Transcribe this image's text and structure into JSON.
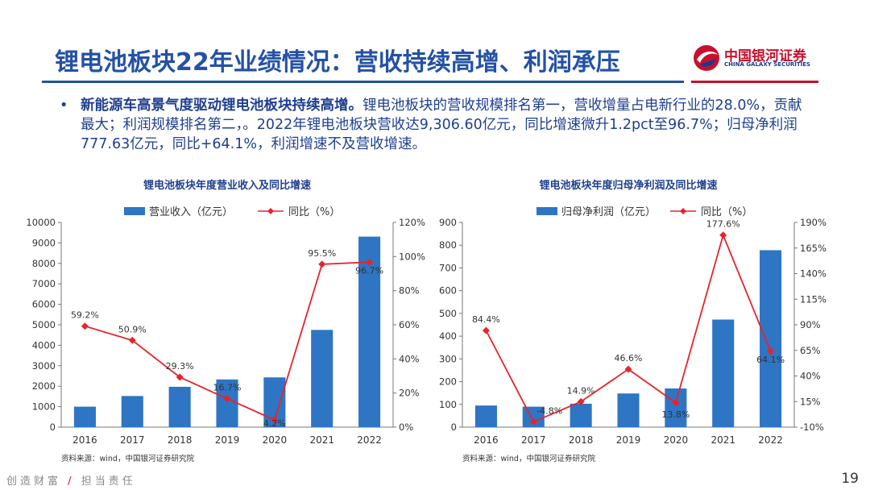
{
  "header": {
    "title": "锂电池板块22年业绩情况：营收持续高增、利润承压",
    "logo_cn": "中国银河证券",
    "logo_en": "CHINA GALAXY SECURITIES"
  },
  "bullet": {
    "marker": "•",
    "bold": "新能源车高景气度驱动锂电池板块持续高增。",
    "text": "锂电池板块的营收规模排名第一，营收增量占电新行业的28.0%，贡献最大；利润规模排名第二，。2022年锂电池板块营收达9,306.60亿元，同比增速微升1.2pct至96.7%；归母净利润777.63亿元，同比+64.1%，利润增速不及营收增速。"
  },
  "footer": {
    "left1": "创造财富",
    "slash": "/",
    "left2": "担当责任",
    "page": "19"
  },
  "colors": {
    "bar": "#2e75c4",
    "line": "#e8232a",
    "title": "#2451a6",
    "brand_red": "#c8102e"
  },
  "chart_data": [
    {
      "type": "bar",
      "title": "锂电池板块年度营业收入及同比增速",
      "categories": [
        "2016",
        "2017",
        "2018",
        "2019",
        "2020",
        "2021",
        "2022"
      ],
      "series": [
        {
          "name": "营业收入（亿元）",
          "axis": "left",
          "kind": "bar",
          "values": [
            1000,
            1520,
            1970,
            2330,
            2430,
            4750,
            9307
          ]
        },
        {
          "name": "同比（%）",
          "axis": "right",
          "kind": "line",
          "values": [
            59.2,
            50.9,
            29.3,
            16.7,
            4.2,
            95.5,
            96.7
          ],
          "labels": [
            "59.2%",
            "50.9%",
            "29.3%",
            "16.7%",
            "4.2%",
            "95.5%",
            "96.7%"
          ]
        }
      ],
      "ylim": [
        0,
        10000
      ],
      "yticks": [
        0,
        1000,
        2000,
        3000,
        4000,
        5000,
        6000,
        7000,
        8000,
        9000,
        10000
      ],
      "y2lim": [
        0,
        120
      ],
      "y2ticks": [
        0,
        20,
        40,
        60,
        80,
        100,
        120
      ],
      "y2ticklabels": [
        "0%",
        "20%",
        "40%",
        "60%",
        "80%",
        "100%",
        "120%"
      ],
      "legend": "top",
      "source": "资料来源：wind，中国银河证券研究院"
    },
    {
      "type": "bar",
      "title": "锂电池板块年度归母净利润及同比增速",
      "categories": [
        "2016",
        "2017",
        "2018",
        "2019",
        "2020",
        "2021",
        "2022"
      ],
      "series": [
        {
          "name": "归母净利润（亿元）",
          "axis": "left",
          "kind": "bar",
          "values": [
            95,
            90,
            103,
            148,
            170,
            473,
            778
          ]
        },
        {
          "name": "同比（%）",
          "axis": "right",
          "kind": "line",
          "values": [
            84.4,
            -4.8,
            14.9,
            46.6,
            13.8,
            177.6,
            64.1
          ],
          "labels": [
            "84.4%",
            "-4.8%",
            "14.9%",
            "46.6%",
            "13.8%",
            "177.6%",
            "64.1%"
          ]
        }
      ],
      "ylim": [
        0,
        900
      ],
      "yticks": [
        0,
        100,
        200,
        300,
        400,
        500,
        600,
        700,
        800,
        900
      ],
      "y2lim": [
        -10,
        190
      ],
      "y2ticks": [
        -10,
        15,
        40,
        65,
        90,
        115,
        140,
        165,
        190
      ],
      "y2ticklabels": [
        "-10%",
        "15%",
        "40%",
        "65%",
        "90%",
        "115%",
        "140%",
        "165%",
        "190%"
      ],
      "legend": "top",
      "source": "资料来源：wind，中国银河证券研究院"
    }
  ]
}
